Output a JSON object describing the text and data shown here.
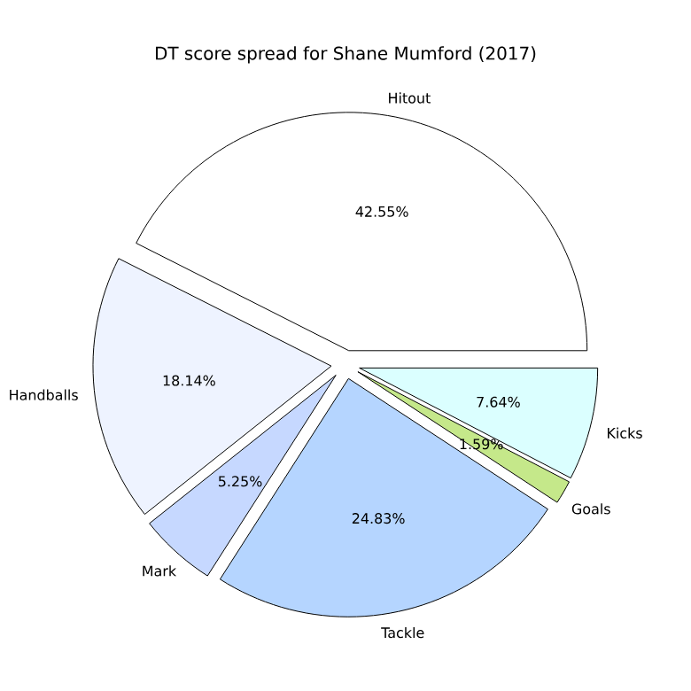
{
  "chart_data": {
    "type": "pie",
    "title": "DT score spread for Shane Mumford (2017)",
    "categories": [
      "Hitout",
      "Handballs",
      "Mark",
      "Tackle",
      "Goals",
      "Kicks"
    ],
    "values": [
      42.55,
      18.14,
      5.25,
      24.83,
      1.59,
      7.64
    ],
    "value_labels": [
      "42.55%",
      "18.14%",
      "5.25%",
      "24.83%",
      "1.59%",
      "7.64%"
    ],
    "colors": [
      "#ffffff",
      "#eef3ff",
      "#c6d8ff",
      "#b5d5ff",
      "#c5e88a",
      "#dbffff"
    ]
  }
}
